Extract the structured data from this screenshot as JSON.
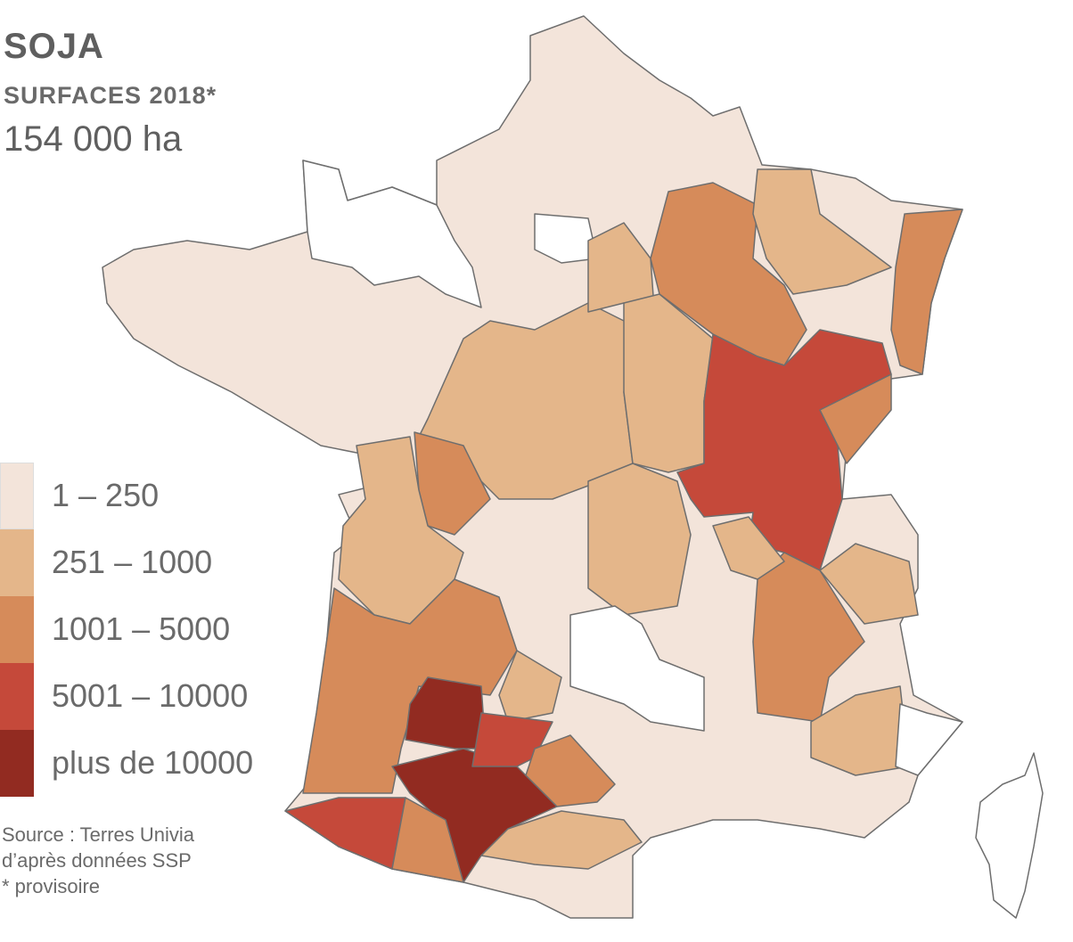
{
  "header": {
    "title": "SOJA",
    "subtitle": "SURFACES 2018*",
    "total": "154 000 ha"
  },
  "legend": {
    "items": [
      {
        "label": "1 – 250",
        "color": "#f3e4da"
      },
      {
        "label": "251 – 1000",
        "color": "#e4b68a"
      },
      {
        "label": "1001 – 5000",
        "color": "#d68b5a"
      },
      {
        "label": "5001 – 10000",
        "color": "#c5493a"
      },
      {
        "label": "plus de 10000",
        "color": "#922b21"
      }
    ]
  },
  "source": [
    "Source : Terres Univia",
    "d’après données SSP",
    "* provisoire"
  ]
}
